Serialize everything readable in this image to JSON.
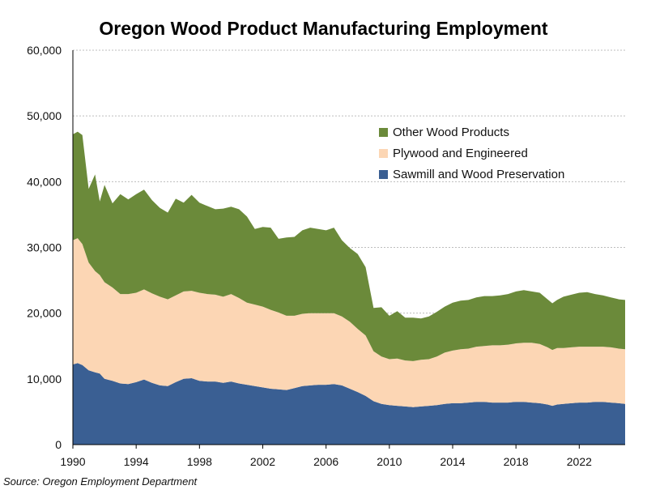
{
  "chart_data": {
    "type": "area",
    "stacked": true,
    "title": "Oregon Wood Product Manufacturing Employment",
    "source": "Source: Oregon Employment Department",
    "xlabel": "",
    "ylabel": "",
    "xlim": [
      1990,
      2024.9
    ],
    "ylim": [
      0,
      60000
    ],
    "x_ticks": [
      "1990",
      "1994",
      "1998",
      "2002",
      "2006",
      "2010",
      "2014",
      "2018",
      "2022"
    ],
    "y_ticks": [
      "0",
      "10,000",
      "20,000",
      "30,000",
      "40,000",
      "50,000",
      "60,000"
    ],
    "grid": true,
    "legend_position": "upper-right",
    "x": [
      1990.0,
      1990.3,
      1990.6,
      1991.0,
      1991.4,
      1991.7,
      1992.0,
      1992.5,
      1993.0,
      1993.5,
      1994.0,
      1994.5,
      1995.0,
      1995.5,
      1996.0,
      1996.5,
      1997.0,
      1997.5,
      1998.0,
      1998.5,
      1999.0,
      1999.5,
      2000.0,
      2000.5,
      2001.0,
      2001.5,
      2002.0,
      2002.5,
      2003.0,
      2003.5,
      2004.0,
      2004.5,
      2005.0,
      2005.5,
      2006.0,
      2006.5,
      2007.0,
      2007.5,
      2008.0,
      2008.5,
      2009.0,
      2009.5,
      2010.0,
      2010.5,
      2011.0,
      2011.5,
      2012.0,
      2012.5,
      2013.0,
      2013.5,
      2014.0,
      2014.5,
      2015.0,
      2015.5,
      2016.0,
      2016.5,
      2017.0,
      2017.5,
      2018.0,
      2018.5,
      2019.0,
      2019.5,
      2020.0,
      2020.3,
      2020.6,
      2021.0,
      2021.5,
      2022.0,
      2022.5,
      2023.0,
      2023.5,
      2024.0,
      2024.5,
      2024.9
    ],
    "series": [
      {
        "name": "Sawmill and Wood Preservation",
        "color": "#3a5f93",
        "values": [
          12200,
          12400,
          12100,
          11300,
          11000,
          10800,
          10000,
          9700,
          9300,
          9200,
          9500,
          9900,
          9400,
          9000,
          8900,
          9500,
          10000,
          10100,
          9700,
          9600,
          9600,
          9400,
          9600,
          9300,
          9100,
          8900,
          8700,
          8500,
          8400,
          8300,
          8600,
          8900,
          9000,
          9100,
          9100,
          9200,
          9000,
          8500,
          8000,
          7400,
          6600,
          6200,
          6000,
          5900,
          5800,
          5700,
          5800,
          5900,
          6000,
          6200,
          6300,
          6300,
          6400,
          6500,
          6500,
          6400,
          6400,
          6400,
          6500,
          6500,
          6400,
          6300,
          6100,
          5900,
          6100,
          6200,
          6300,
          6400,
          6400,
          6500,
          6500,
          6400,
          6300,
          6200
        ]
      },
      {
        "name": "Plywood and Engineered",
        "color": "#fcd6b4",
        "values": [
          18900,
          19000,
          18400,
          16400,
          15400,
          15000,
          14700,
          14200,
          13600,
          13700,
          13600,
          13700,
          13600,
          13500,
          13200,
          13200,
          13300,
          13300,
          13400,
          13300,
          13200,
          13100,
          13300,
          13000,
          12500,
          12400,
          12300,
          12000,
          11700,
          11300,
          11000,
          11000,
          11000,
          10900,
          10900,
          10800,
          10500,
          10200,
          9600,
          9200,
          7600,
          7200,
          7000,
          7200,
          7000,
          7000,
          7100,
          7100,
          7400,
          7800,
          8000,
          8200,
          8200,
          8400,
          8500,
          8700,
          8700,
          8800,
          8900,
          9000,
          9100,
          9000,
          8700,
          8500,
          8600,
          8500,
          8500,
          8500,
          8500,
          8400,
          8400,
          8400,
          8300,
          8300
        ]
      },
      {
        "name": "Other Wood Products",
        "color": "#6b8a3a",
        "values": [
          16100,
          16200,
          16600,
          11200,
          14700,
          11200,
          14800,
          12800,
          15200,
          14400,
          15000,
          15200,
          14200,
          13500,
          13200,
          14700,
          13500,
          14600,
          13700,
          13400,
          13000,
          13400,
          13300,
          13500,
          13100,
          11500,
          12100,
          12500,
          11200,
          11900,
          12000,
          12700,
          13000,
          12800,
          12600,
          13000,
          11600,
          11200,
          11400,
          10400,
          6600,
          7500,
          6600,
          7200,
          6500,
          6600,
          6300,
          6500,
          6800,
          7000,
          7300,
          7400,
          7400,
          7500,
          7600,
          7500,
          7600,
          7700,
          7900,
          8000,
          7800,
          7800,
          7300,
          7100,
          7300,
          7800,
          8000,
          8200,
          8300,
          8000,
          7800,
          7600,
          7500,
          7500
        ]
      }
    ]
  }
}
